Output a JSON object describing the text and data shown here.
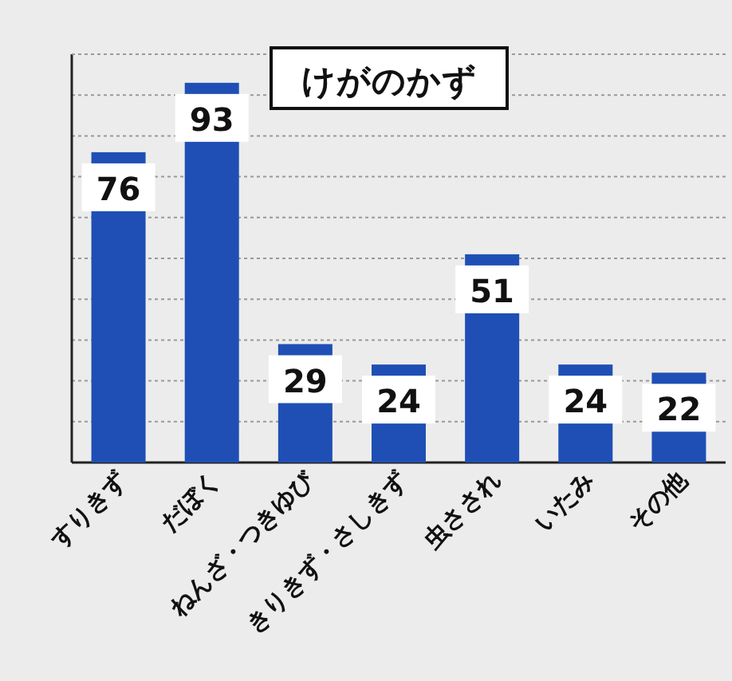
{
  "chart_data": {
    "type": "bar",
    "title": "けがのかず",
    "categories": [
      "すりきず",
      "だぼく",
      "ねんざ・つきゆび",
      "きりきず・さしきず",
      "虫さされ",
      "いたみ",
      "その他"
    ],
    "values": [
      76,
      93,
      29,
      24,
      51,
      24,
      22
    ],
    "color": "#1f4fb5",
    "data_labels": true,
    "ylim": [
      0,
      100
    ],
    "yticks": [
      {
        "value": 10,
        "label": null
      },
      {
        "value": 20,
        "label": null
      },
      {
        "value": 30,
        "label": null
      },
      {
        "value": 40,
        "label": null
      },
      {
        "value": 50,
        "label": null
      },
      {
        "value": 60,
        "label": null
      },
      {
        "value": 70,
        "label": null
      },
      {
        "value": 80,
        "label": null
      },
      {
        "value": 90,
        "label": null
      }
    ],
    "grid": "y",
    "tick_labels": "x"
  }
}
